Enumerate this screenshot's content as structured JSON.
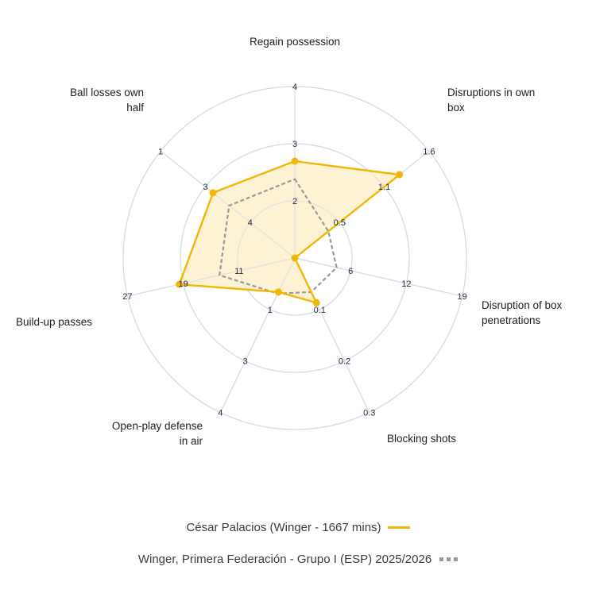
{
  "chart_data": {
    "type": "radar",
    "title": "",
    "center": [
      371,
      325
    ],
    "outer_radius": 216,
    "rings": 3,
    "colors": {
      "player_line": "#F2B705",
      "player_fill": "#FDF0CC",
      "average_line": "#9a9a9a",
      "grid": "#D5DCE8",
      "text": "#1f1f1f"
    },
    "axes": [
      {
        "label": [
          "Regain possession"
        ],
        "ticks": [
          "2",
          "3",
          "4"
        ],
        "label_pos": [
          371,
          57
        ],
        "anchor": "middle"
      },
      {
        "label": [
          "Disruptions in own",
          "box"
        ],
        "ticks": [
          "0.5",
          "1.1",
          "1.6"
        ],
        "label_pos": [
          563,
          121
        ],
        "anchor": "start"
      },
      {
        "label": [
          "Disruption of box",
          "penetrations"
        ],
        "ticks": [
          "6",
          "12",
          "19"
        ],
        "label_pos": [
          606,
          389
        ],
        "anchor": "start"
      },
      {
        "label": [
          "Blocking shots"
        ],
        "ticks": [
          "0.1",
          "0.2",
          "0.3"
        ],
        "label_pos": [
          487,
          557
        ],
        "anchor": "start"
      },
      {
        "label": [
          "Open-play defense",
          "in air"
        ],
        "ticks": [
          "1",
          "3",
          "4"
        ],
        "label_pos": [
          255,
          541
        ],
        "anchor": "end"
      },
      {
        "label": [
          "Build-up passes"
        ],
        "ticks": [
          "11",
          "19",
          "27"
        ],
        "label_pos": [
          20,
          410
        ],
        "anchor": "start"
      },
      {
        "label": [
          "Ball losses own",
          "half"
        ],
        "ticks": [
          "4",
          "3",
          "1"
        ],
        "label_pos": [
          181,
          121
        ],
        "anchor": "end"
      }
    ],
    "series": [
      {
        "name": "César Palacios (Winger - 1667 mins)",
        "style": "solid",
        "values_fraction_of_max": [
          0.565,
          0.78,
          0.0,
          0.29,
          0.22,
          0.69,
          0.61
        ],
        "approx_values": [
          2.8,
          1.3,
          0,
          0.09,
          1.0,
          19,
          3
        ]
      },
      {
        "name": "Winger, Primera Federación - Grupo I (ESP) 2025/2026",
        "style": "dotted",
        "values_fraction_of_max": [
          0.46,
          0.25,
          0.25,
          0.22,
          0.23,
          0.45,
          0.49
        ],
        "approx_values": [
          2.4,
          0.4,
          5,
          0.07,
          1.0,
          12,
          3.6
        ]
      }
    ]
  },
  "legend": {
    "player_label": "César Palacios (Winger - 1667 mins)",
    "average_label": "Winger, Primera Federación - Grupo I (ESP) 2025/2026"
  }
}
